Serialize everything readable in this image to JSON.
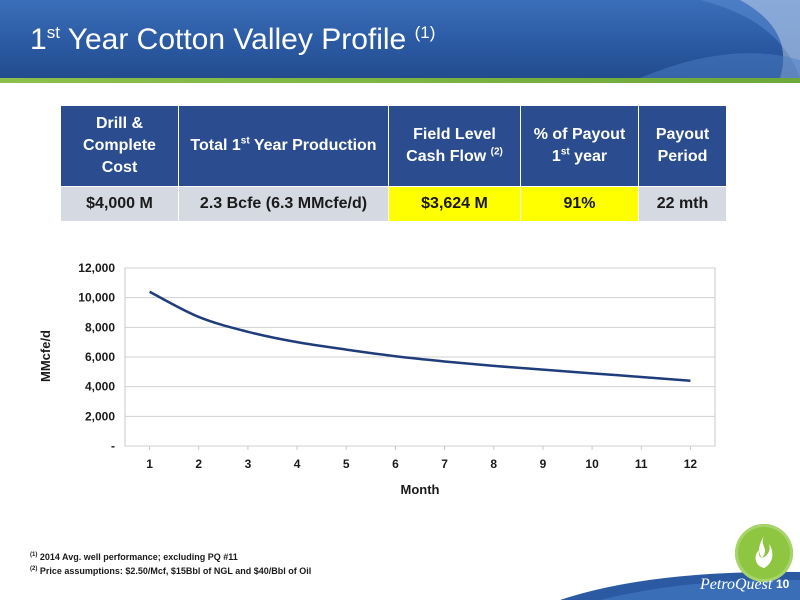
{
  "header": {
    "title_prefix": "1",
    "title_sup": "st",
    "title_main": " Year Cotton Valley Profile ",
    "title_note": "(1)"
  },
  "summary_table": {
    "headers": [
      {
        "text": "Drill & Complete Cost",
        "sup": "",
        "suffix": ""
      },
      {
        "text": "Total 1",
        "sup": "st",
        "suffix": " Year Production"
      },
      {
        "text": "Field Level Cash Flow ",
        "sup": "(2)",
        "suffix": ""
      },
      {
        "text": "% of Payout 1",
        "sup": "st",
        "suffix": " year"
      },
      {
        "text": "Payout Period",
        "sup": "",
        "suffix": ""
      }
    ],
    "row": [
      "$4,000 M",
      "2.3 Bcfe (6.3 MMcfe/d)",
      "$3,624 M",
      "91%",
      "22 mth"
    ],
    "highlight_color": "#ffff00",
    "header_color": "#2b4d8f"
  },
  "chart_data": {
    "type": "line",
    "xlabel": "Month",
    "ylabel": "MMcfe/d",
    "x": [
      1,
      2,
      3,
      4,
      5,
      6,
      7,
      8,
      9,
      10,
      11,
      12
    ],
    "series": [
      {
        "values": [
          10400,
          8700,
          7700,
          7000,
          6500,
          6050,
          5700,
          5400,
          5150,
          4900,
          4650,
          4400
        ],
        "color": "#1f3d7a"
      }
    ],
    "ylim": [
      0,
      12000
    ],
    "yticks": [
      0,
      2000,
      4000,
      6000,
      8000,
      10000,
      12000
    ],
    "ytick_labels": [
      "-",
      "2,000",
      "4,000",
      "6,000",
      "8,000",
      "10,000",
      "12,000"
    ],
    "grid": true,
    "legend": "none"
  },
  "footnotes": [
    {
      "sup": "(1)",
      "text": " 2014 Avg. well performance; excluding PQ #11"
    },
    {
      "sup": "(2)",
      "text": " Price assumptions: $2.50/Mcf, $15Bbl of NGL and $40/Bbl of Oil"
    }
  ],
  "footer": {
    "brand": "PetroQuest",
    "page_number": "10",
    "accent_color": "#8ec641"
  }
}
